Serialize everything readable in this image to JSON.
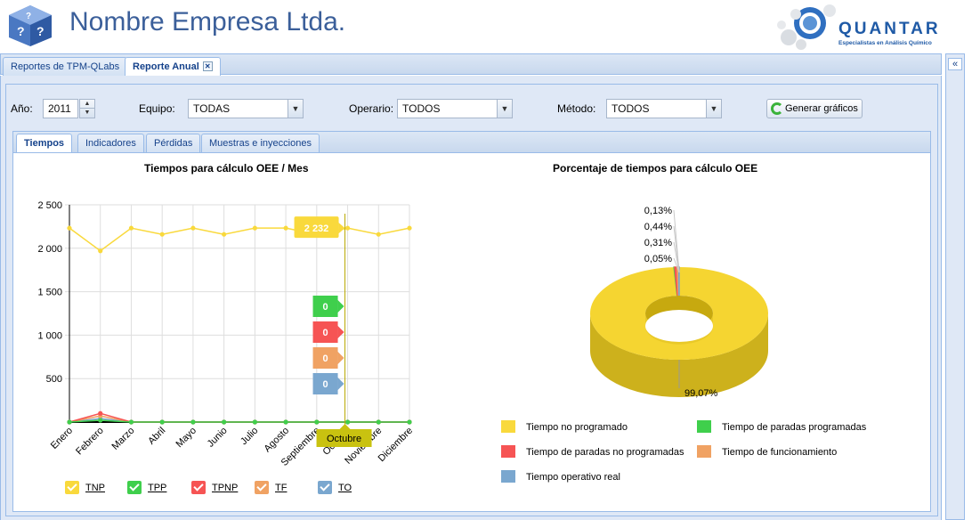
{
  "header": {
    "company_name": "Nombre Empresa Ltda.",
    "brand_name": "QUANTAR",
    "brand_tagline": "Especialistas en Análisis Químico"
  },
  "top_tabs": [
    {
      "label": "Reportes de TPM-QLabs",
      "active": false
    },
    {
      "label": "Reporte Anual",
      "active": true,
      "closable": true
    }
  ],
  "filters": {
    "year_label": "Año:",
    "year_value": "2011",
    "equipment_label": "Equipo:",
    "equipment_value": "TODAS",
    "operator_label": "Operario:",
    "operator_value": "TODOS",
    "method_label": "Método:",
    "method_value": "TODOS",
    "generate_button": "Generar gráficos"
  },
  "inner_tabs": [
    {
      "label": "Tiempos",
      "active": true
    },
    {
      "label": "Indicadores",
      "active": false
    },
    {
      "label": "Pérdidas",
      "active": false
    },
    {
      "label": "Muestras e inyecciones",
      "active": false
    }
  ],
  "chart_data": [
    {
      "type": "line",
      "title": "Tiempos para cálculo OEE / Mes",
      "categories": [
        "Enero",
        "Febrero",
        "Marzo",
        "Abril",
        "Mayo",
        "Junio",
        "Julio",
        "Agosto",
        "Septiembre",
        "Octubre",
        "Noviembre",
        "Diciembre"
      ],
      "y_ticks": [
        "500",
        "1 000",
        "1 500",
        "2 000",
        "2 500"
      ],
      "ylim": [
        0,
        2500
      ],
      "grid": true,
      "series": [
        {
          "name": "TNP",
          "color": "#f9d93c",
          "values": [
            2232,
            1970,
            2232,
            2160,
            2232,
            2160,
            2232,
            2232,
            2160,
            2232,
            2160,
            2232
          ]
        },
        {
          "name": "TPP",
          "color": "#3fcf4c",
          "values": [
            0,
            20,
            0,
            0,
            0,
            0,
            0,
            0,
            0,
            0,
            0,
            0
          ]
        },
        {
          "name": "TPNP",
          "color": "#f65454",
          "values": [
            0,
            100,
            0,
            0,
            0,
            0,
            0,
            0,
            0,
            0,
            0,
            0
          ]
        },
        {
          "name": "TF",
          "color": "#f0a263",
          "values": [
            0,
            70,
            0,
            0,
            0,
            0,
            0,
            0,
            0,
            0,
            0,
            0
          ]
        },
        {
          "name": "TO",
          "color": "#7aa7cf",
          "values": [
            0,
            40,
            0,
            0,
            0,
            0,
            0,
            0,
            0,
            0,
            0,
            0
          ]
        }
      ],
      "tooltip": {
        "category": "Octubre",
        "tnp_value": "2 232",
        "tpp_value": "0",
        "tpnp_value": "0",
        "tf_value": "0",
        "to_value": "0"
      },
      "legend_placement": "bottom"
    },
    {
      "type": "pie",
      "title": "Porcentaje de tiempos para cálculo OEE",
      "slices": [
        {
          "name": "Tiempo no programado",
          "value": 99.07,
          "label": "99,07%",
          "color": "#f9d93c"
        },
        {
          "name": "Tiempo de paradas programadas",
          "value": 0.13,
          "label": "0,13%",
          "color": "#3fcf4c"
        },
        {
          "name": "Tiempo de paradas no programadas",
          "value": 0.44,
          "label": "0,44%",
          "color": "#f65454"
        },
        {
          "name": "Tiempo de funcionamiento",
          "value": 0.31,
          "label": "0,31%",
          "color": "#f0a263"
        },
        {
          "name": "Tiempo operativo real",
          "value": 0.05,
          "label": "0,05%",
          "color": "#7aa7cf"
        }
      ],
      "legend_placement": "bottom"
    }
  ]
}
